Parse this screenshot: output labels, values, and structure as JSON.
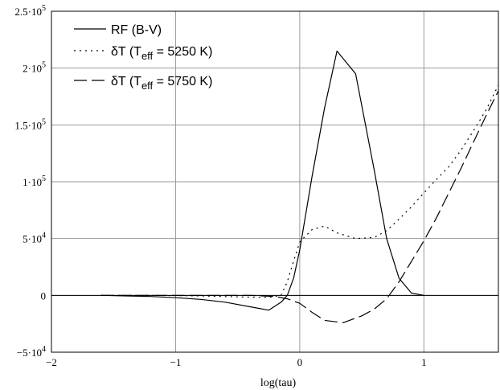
{
  "chart_data": {
    "type": "line",
    "xlabel": "log(tau)",
    "ylabel": "",
    "xlim": [
      -2,
      1.6
    ],
    "ylim": [
      -50000,
      250000
    ],
    "grid": true,
    "legend_position": "top-left",
    "x_ticks": [
      {
        "value": -2,
        "label": "−2"
      },
      {
        "value": -1,
        "label": "−1"
      },
      {
        "value": 0,
        "label": "0"
      },
      {
        "value": 1,
        "label": "1"
      }
    ],
    "y_ticks": [
      {
        "value": 250000,
        "mant": "2.5·10",
        "exp": "5"
      },
      {
        "value": 200000,
        "mant": "2·10",
        "exp": "5"
      },
      {
        "value": 150000,
        "mant": "1.5·10",
        "exp": "5"
      },
      {
        "value": 100000,
        "mant": "1·10",
        "exp": "5"
      },
      {
        "value": 50000,
        "mant": "5·10",
        "exp": "4"
      },
      {
        "value": 0,
        "mant": "0",
        "exp": ""
      },
      {
        "value": -50000,
        "mant": "−5·10",
        "exp": "4"
      }
    ],
    "series": [
      {
        "name": "RF (B-V)",
        "style": "solid",
        "x": [
          -1.6,
          -1.4,
          -1.2,
          -1.0,
          -0.8,
          -0.6,
          -0.4,
          -0.25,
          -0.15,
          -0.1,
          -0.05,
          0.0,
          0.1,
          0.2,
          0.3,
          0.45,
          0.6,
          0.7,
          0.8,
          0.9,
          1.0
        ],
        "y": [
          0,
          -500,
          -1000,
          -2000,
          -3500,
          -6000,
          -10000,
          -13000,
          -6000,
          0,
          15000,
          40000,
          105000,
          165000,
          215000,
          195000,
          110000,
          50000,
          15000,
          2000,
          0
        ]
      },
      {
        "name": "δT (T_eff = 5250 K)",
        "style": "dotted",
        "x": [
          -1.6,
          -1.2,
          -0.8,
          -0.4,
          -0.25,
          -0.15,
          -0.1,
          -0.05,
          0.0,
          0.1,
          0.2,
          0.3,
          0.45,
          0.6,
          0.7,
          0.8,
          0.9,
          1.0,
          1.1,
          1.2,
          1.3,
          1.4,
          1.5,
          1.6
        ],
        "y": [
          0,
          0,
          -500,
          -1500,
          -1800,
          0,
          12000,
          30000,
          47000,
          58000,
          61000,
          55000,
          50000,
          51000,
          57000,
          67000,
          78000,
          90000,
          102000,
          113000,
          128000,
          145000,
          163000,
          185000
        ]
      },
      {
        "name": "δT (T_eff = 5750 K)",
        "style": "dashed",
        "x": [
          -1.6,
          -1.2,
          -0.8,
          -0.4,
          -0.2,
          -0.1,
          0.0,
          0.1,
          0.2,
          0.35,
          0.5,
          0.6,
          0.7,
          0.8,
          0.9,
          1.0,
          1.1,
          1.2,
          1.3,
          1.4,
          1.5,
          1.6
        ],
        "y": [
          0,
          0,
          0,
          0,
          -1000,
          -3000,
          -7000,
          -15000,
          -22000,
          -24000,
          -18000,
          -12000,
          -3000,
          12000,
          30000,
          48000,
          68000,
          90000,
          112000,
          135000,
          158000,
          180000
        ]
      }
    ],
    "legend": [
      {
        "series": 0,
        "base": "RF (B-V)",
        "sub": "",
        "tail": ""
      },
      {
        "series": 1,
        "base": "δT (T",
        "sub": "eff",
        "tail": " = 5250 K)"
      },
      {
        "series": 2,
        "base": "δT (T",
        "sub": "eff",
        "tail": " = 5750 K)"
      }
    ]
  }
}
